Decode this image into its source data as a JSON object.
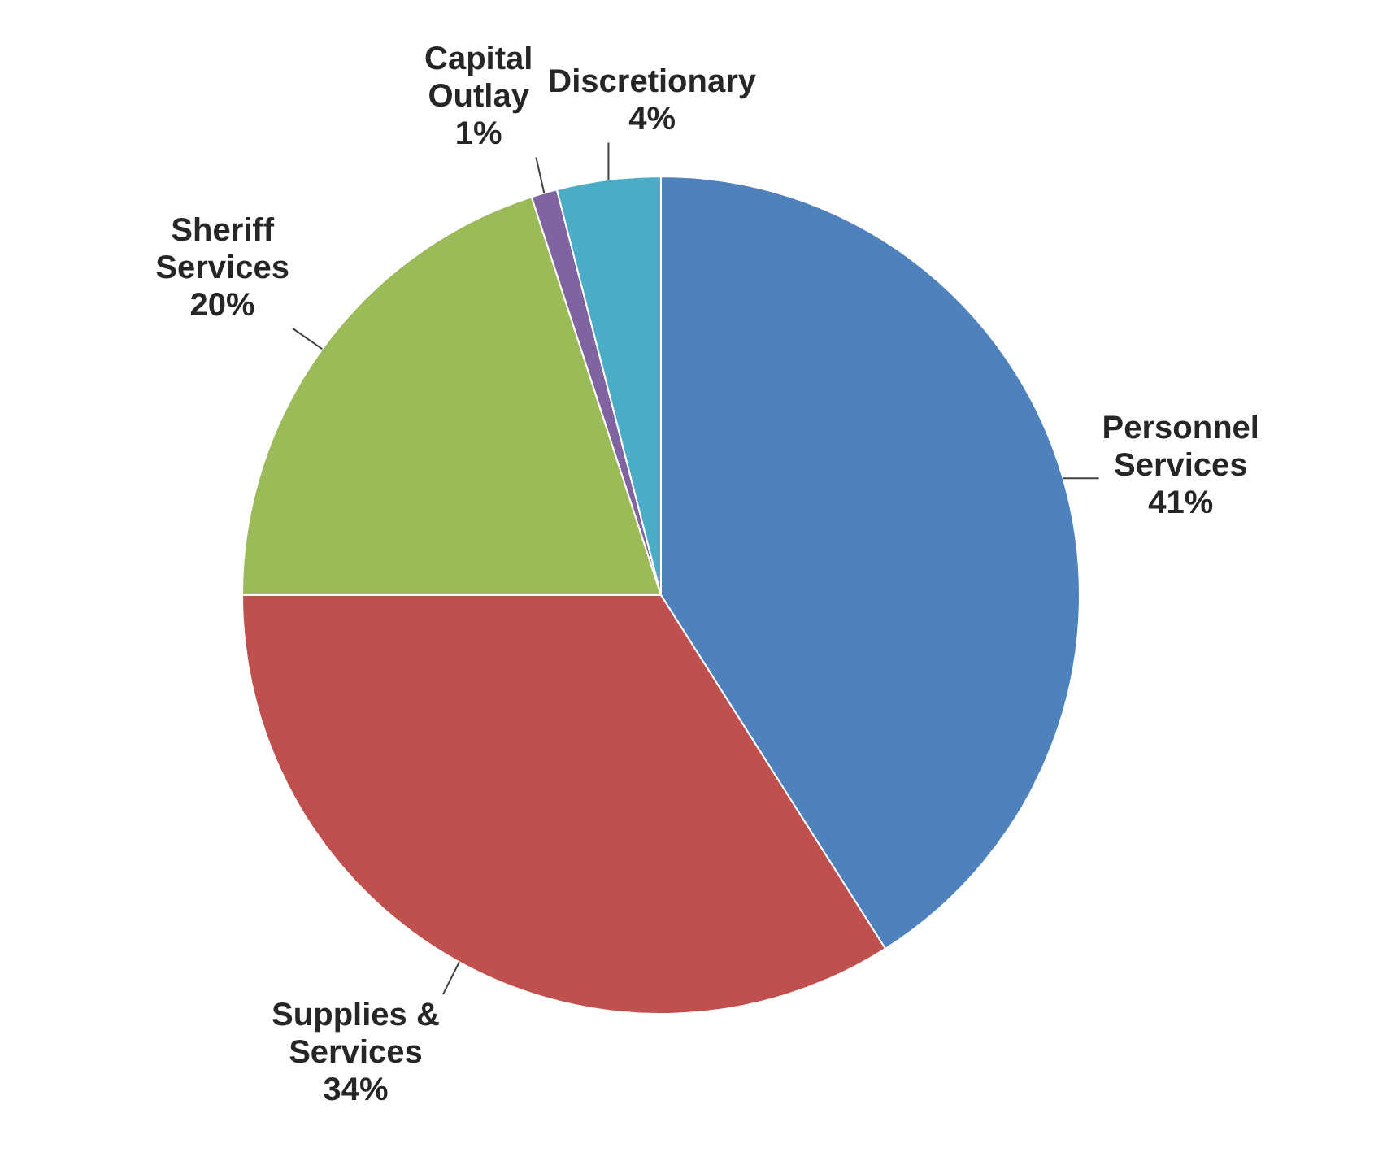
{
  "chart_data": {
    "type": "pie",
    "categories": [
      "Personnel Services",
      "Supplies & Services",
      "Sheriff Services",
      "Capital Outlay",
      "Discretionary"
    ],
    "values": [
      41,
      34,
      20,
      1,
      4
    ],
    "colors": [
      "#4f81bd",
      "#c0504d",
      "#9bbb59",
      "#8064a2",
      "#4bacc6"
    ],
    "value_labels": [
      "41%",
      "34%",
      "20%",
      "1%",
      "4%"
    ],
    "legend": false
  }
}
